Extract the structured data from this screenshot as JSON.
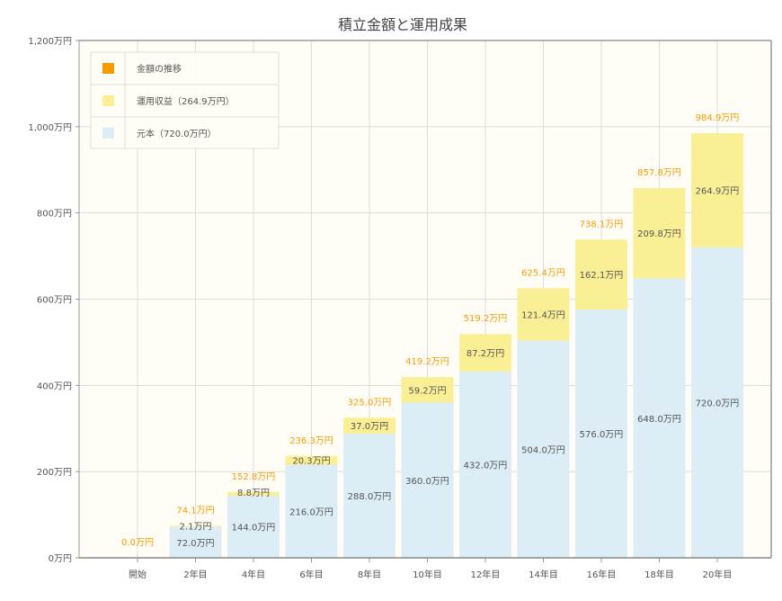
{
  "chart_data": {
    "type": "bar",
    "stacked": true,
    "title": "積立金額と運用成果",
    "categories": [
      "開始",
      "2年目",
      "4年目",
      "6年目",
      "8年目",
      "10年目",
      "12年目",
      "14年目",
      "16年目",
      "18年目",
      "20年目"
    ],
    "series": [
      {
        "name": "元本（720.0万円）",
        "color": "#dcedf5",
        "values": [
          0,
          72.0,
          144.0,
          216.0,
          288.0,
          360.0,
          432.0,
          504.0,
          576.0,
          648.0,
          720.0
        ],
        "labels": [
          "",
          "72.0万円",
          "144.0万円",
          "216.0万円",
          "288.0万円",
          "360.0万円",
          "432.0万円",
          "504.0万円",
          "576.0万円",
          "648.0万円",
          "720.0万円"
        ]
      },
      {
        "name": "運用収益（264.9万円）",
        "color": "#fbef96",
        "values": [
          0,
          2.1,
          8.8,
          20.3,
          37.0,
          59.2,
          87.2,
          121.4,
          162.1,
          209.8,
          264.9
        ],
        "labels": [
          "",
          "2.1万円",
          "8.8万円",
          "20.3万円",
          "37.0万円",
          "59.2万円",
          "87.2万円",
          "121.4万円",
          "162.1万円",
          "209.8万円",
          "264.9万円"
        ]
      }
    ],
    "totals": {
      "name": "金額の推移",
      "color": "#f59c00",
      "values": [
        0.0,
        74.1,
        152.8,
        236.3,
        325.0,
        419.2,
        519.2,
        625.4,
        738.1,
        857.8,
        984.9
      ],
      "labels": [
        "0.0万円",
        "74.1万円",
        "152.8万円",
        "236.3万円",
        "325.0万円",
        "419.2万円",
        "519.2万円",
        "625.4万円",
        "738.1万円",
        "857.8万円",
        "984.9万円"
      ]
    },
    "ylim": [
      0,
      1200
    ],
    "yticks": [
      0,
      200,
      400,
      600,
      800,
      1000,
      1200
    ],
    "ytick_labels": [
      "0万円",
      "200万円",
      "400万円",
      "600万円",
      "800万円",
      "1,000万円",
      "1,200万円"
    ],
    "grid": true,
    "legend_position": "top-left",
    "legend_order": [
      "金額の推移",
      "運用収益（264.9万円）",
      "元本（720.0万円）"
    ]
  }
}
